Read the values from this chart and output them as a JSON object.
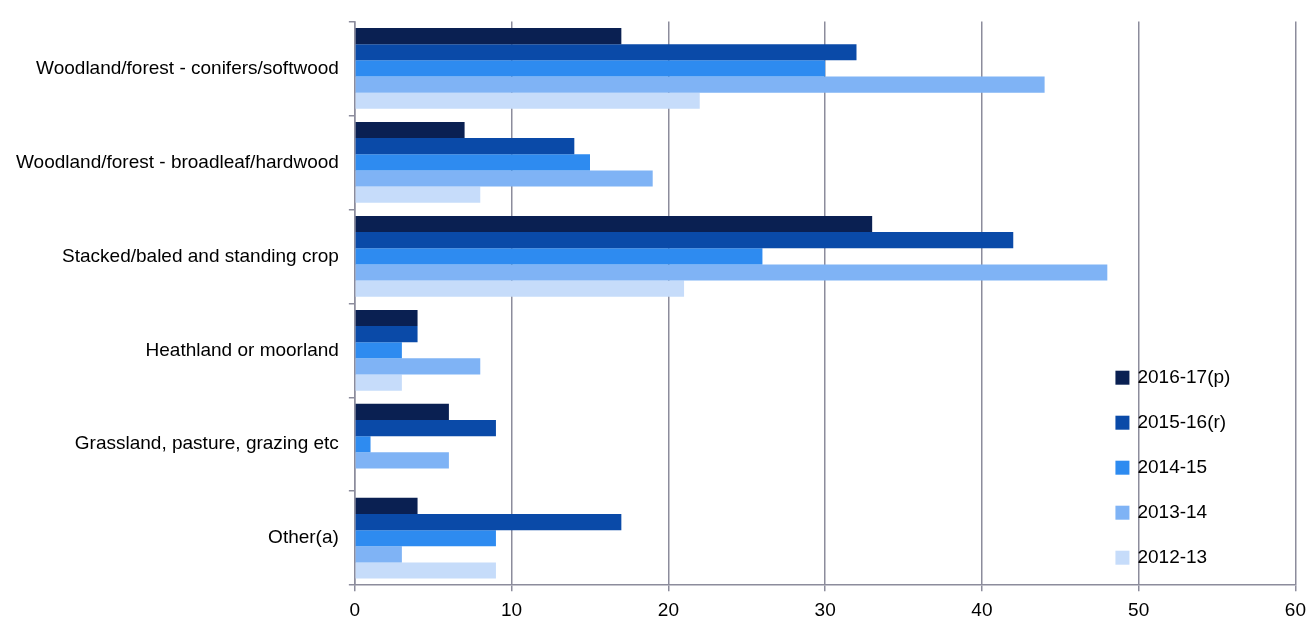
{
  "chart_data": {
    "type": "bar",
    "orientation": "horizontal",
    "categories": [
      "Woodland/forest - conifers/softwood",
      "Woodland/forest - broadleaf/hardwood",
      "Stacked/baled and standing crop",
      "Heathland or moorland",
      "Grassland, pasture, grazing etc",
      "Other(a)"
    ],
    "series": [
      {
        "name": "2016-17(p)",
        "color": "#0a2052",
        "values": [
          17,
          7,
          33,
          4,
          6,
          4
        ]
      },
      {
        "name": "2015-16(r)",
        "color": "#0a4aa8",
        "values": [
          32,
          14,
          42,
          4,
          9,
          17
        ]
      },
      {
        "name": "2014-15",
        "color": "#2e8bf0",
        "values": [
          30,
          15,
          26,
          3,
          1,
          9
        ]
      },
      {
        "name": "2013-14",
        "color": "#7fb3f5",
        "values": [
          44,
          19,
          48,
          8,
          6,
          3
        ]
      },
      {
        "name": "2012-13",
        "color": "#c6dcfa",
        "values": [
          22,
          8,
          21,
          3,
          0,
          9
        ]
      }
    ],
    "xlim": [
      0,
      60
    ],
    "xticks": [
      0,
      10,
      20,
      30,
      40,
      50,
      60
    ],
    "grid": "x",
    "legend": "bottom right"
  }
}
